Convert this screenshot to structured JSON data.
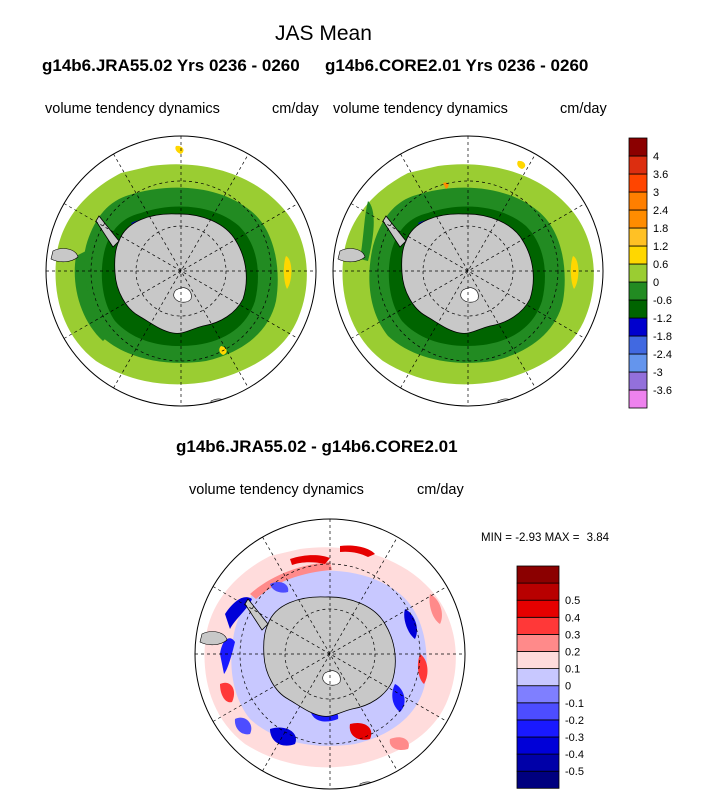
{
  "figure": {
    "title": "JAS Mean",
    "run_left": "g14b6.JRA55.02  Yrs 0236 - 0260",
    "run_right": "g14b6.CORE2.01  Yrs 0236 - 0260",
    "diff_title": "g14b6.JRA55.02 - g14b6.CORE2.01"
  },
  "panels": {
    "left": {
      "variable": "volume tendency dynamics",
      "units": "cm/day"
    },
    "right": {
      "variable": "volume tendency dynamics",
      "units": "cm/day"
    },
    "diff": {
      "variable": "volume tendency dynamics",
      "units": "cm/day",
      "min_label": "MIN =",
      "min_value": "-2.93",
      "max_label": "MAX =",
      "max_value": "3.84"
    }
  },
  "colorbar_top": {
    "colors": [
      "#ee82ee",
      "#9370db",
      "#6495ed",
      "#4169e1",
      "#0000cd",
      "#006400",
      "#228b22",
      "#9acd32",
      "#ffd700",
      "#ffc125",
      "#ff8c00",
      "#ff7f00",
      "#ff4500",
      "#dc2e10",
      "#8b0000"
    ],
    "labels": [
      "-3.6",
      "-3",
      "-2.4",
      "-1.8",
      "-1.2",
      "-0.6",
      "0",
      "0.6",
      "1.2",
      "1.8",
      "2.4",
      "3",
      "3.6",
      "4"
    ]
  },
  "colorbar_diff": {
    "colors": [
      "#00007f",
      "#0000a8",
      "#0000d8",
      "#1919ff",
      "#4d4dff",
      "#7f7fff",
      "#c8c8ff",
      "#ffdcdc",
      "#ff8a8a",
      "#ff3838",
      "#e60000",
      "#b80000",
      "#8b0000"
    ],
    "labels": [
      "-0.5",
      "-0.4",
      "-0.3",
      "-0.2",
      "-0.1",
      "0",
      "0.1",
      "0.2",
      "0.3",
      "0.4",
      "0.5"
    ]
  }
}
